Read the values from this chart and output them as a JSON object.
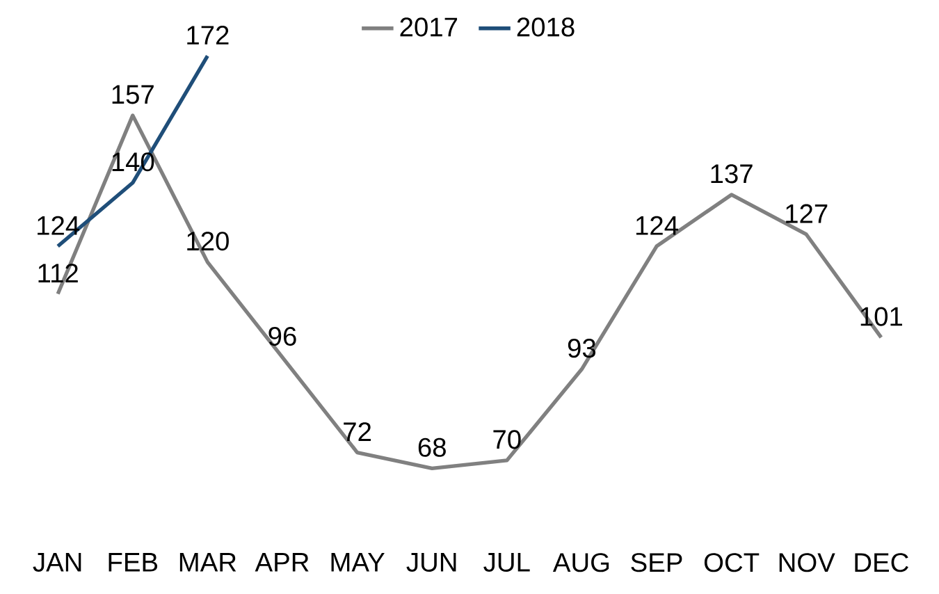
{
  "chart_data": {
    "type": "line",
    "categories": [
      "JAN",
      "FEB",
      "MAR",
      "APR",
      "MAY",
      "JUN",
      "JUL",
      "AUG",
      "SEP",
      "OCT",
      "NOV",
      "DEC"
    ],
    "series": [
      {
        "name": "2017",
        "color": "#808080",
        "values": [
          112,
          157,
          120,
          96,
          72,
          68,
          70,
          93,
          124,
          137,
          127,
          101
        ]
      },
      {
        "name": "2018",
        "color": "#1f4e79",
        "values": [
          124,
          140,
          172,
          null,
          null,
          null,
          null,
          null,
          null,
          null,
          null,
          null
        ]
      }
    ],
    "tick_labels": "x",
    "data_labels": true,
    "legend": "top",
    "grid": false,
    "marker": "none",
    "line_style": "solid"
  }
}
